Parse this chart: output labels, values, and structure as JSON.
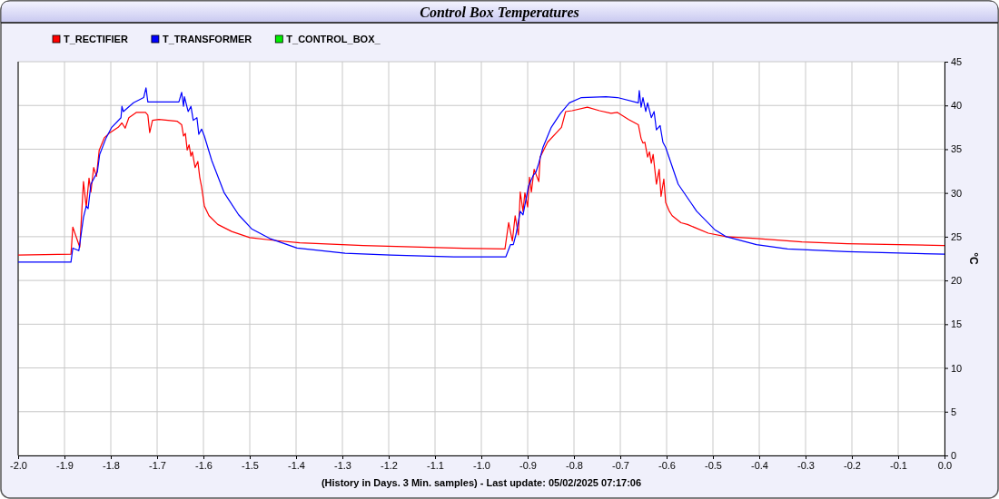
{
  "chart_data": {
    "type": "line",
    "title": "Control Box Temperatures",
    "xlabel": "(History in Days. 3 Min. samples) - Last update: 05/02/2025 07:17:06",
    "ylabel": "°C",
    "xlim": [
      -2.0,
      0.0
    ],
    "xticks": [
      {
        "value": -2.0,
        "label": "-2.0"
      },
      {
        "value": -1.9,
        "label": "-1.9"
      },
      {
        "value": -1.8,
        "label": "-1.8"
      },
      {
        "value": -1.7,
        "label": "-1.7"
      },
      {
        "value": -1.6,
        "label": "-1.6"
      },
      {
        "value": -1.5,
        "label": "-1.5"
      },
      {
        "value": -1.4,
        "label": "-1.4"
      },
      {
        "value": -1.3,
        "label": "-1.3"
      },
      {
        "value": -1.2,
        "label": "-1.2"
      },
      {
        "value": -1.1,
        "label": "-1.1"
      },
      {
        "value": -1.0,
        "label": "-1.0"
      },
      {
        "value": -0.9,
        "label": "-0.9"
      },
      {
        "value": -0.8,
        "label": "-0.8"
      },
      {
        "value": -0.7,
        "label": "-0.7"
      },
      {
        "value": -0.6,
        "label": "-0.6"
      },
      {
        "value": -0.5,
        "label": "-0.5"
      },
      {
        "value": -0.4,
        "label": "-0.4"
      },
      {
        "value": -0.3,
        "label": "-0.3"
      },
      {
        "value": -0.2,
        "label": "-0.2"
      },
      {
        "value": -0.1,
        "label": "-0.1"
      },
      {
        "value": 0.0,
        "label": "0.0"
      }
    ],
    "ylim": [
      0,
      45
    ],
    "yticks": [
      0,
      5,
      10,
      15,
      20,
      25,
      30,
      35,
      40,
      45
    ],
    "grid": true,
    "legend": "top left",
    "marker": "none",
    "line_style": "solid",
    "series": [
      {
        "name": "T_RECTIFIER",
        "color": "#ff0000",
        "x": [
          -2.0,
          -1.886,
          -1.882,
          -1.867,
          -1.859,
          -1.853,
          -1.847,
          -1.843,
          -1.837,
          -1.831,
          -1.825,
          -1.814,
          -1.804,
          -1.784,
          -1.776,
          -1.769,
          -1.761,
          -1.745,
          -1.725,
          -1.72,
          -1.716,
          -1.71,
          -1.696,
          -1.657,
          -1.647,
          -1.643,
          -1.639,
          -1.635,
          -1.631,
          -1.627,
          -1.624,
          -1.618,
          -1.612,
          -1.608,
          -1.604,
          -1.598,
          -1.588,
          -1.569,
          -1.539,
          -1.5,
          -1.451,
          -1.392,
          -1.255,
          -1.059,
          -0.949,
          -0.941,
          -0.933,
          -0.927,
          -0.92,
          -0.916,
          -0.91,
          -0.906,
          -0.9,
          -0.896,
          -0.892,
          -0.886,
          -0.876,
          -0.873,
          -0.857,
          -0.827,
          -0.818,
          -0.804,
          -0.771,
          -0.745,
          -0.72,
          -0.706,
          -0.682,
          -0.661,
          -0.655,
          -0.651,
          -0.647,
          -0.641,
          -0.637,
          -0.633,
          -0.629,
          -0.622,
          -0.616,
          -0.612,
          -0.606,
          -0.602,
          -0.594,
          -0.588,
          -0.569,
          -0.555,
          -0.51,
          -0.471,
          -0.406,
          -0.308,
          -0.21,
          0.0
        ],
        "values": [
          22.9,
          23.0,
          26.1,
          23.8,
          31.3,
          28.4,
          31.7,
          30.1,
          32.9,
          31.9,
          34.9,
          36.3,
          36.8,
          37.5,
          38.0,
          37.4,
          38.6,
          39.2,
          39.2,
          38.9,
          36.9,
          38.3,
          38.4,
          38.2,
          37.8,
          36.5,
          36.8,
          34.9,
          35.5,
          34.2,
          34.7,
          32.9,
          33.6,
          31.8,
          30.7,
          28.5,
          27.4,
          26.4,
          25.6,
          24.9,
          24.6,
          24.3,
          24.0,
          23.7,
          23.6,
          26.6,
          24.5,
          27.4,
          25.2,
          30.1,
          27.9,
          30.0,
          28.4,
          31.8,
          30.1,
          32.7,
          31.3,
          34.1,
          35.8,
          37.5,
          39.3,
          39.4,
          39.8,
          39.4,
          39.1,
          39.2,
          38.4,
          37.8,
          36.2,
          35.7,
          35.8,
          34.1,
          34.7,
          33.4,
          34.4,
          31.0,
          32.7,
          29.6,
          31.6,
          28.9,
          27.9,
          27.4,
          26.6,
          26.4,
          25.4,
          25.0,
          24.8,
          24.4,
          24.2,
          24.0
        ]
      },
      {
        "name": "T_TRANSFORMER",
        "color": "#0000ff",
        "x": [
          -2.0,
          -1.886,
          -1.882,
          -1.869,
          -1.859,
          -1.853,
          -1.849,
          -1.843,
          -1.837,
          -1.829,
          -1.824,
          -1.81,
          -1.798,
          -1.778,
          -1.776,
          -1.773,
          -1.751,
          -1.729,
          -1.724,
          -1.72,
          -1.686,
          -1.653,
          -1.647,
          -1.643,
          -1.641,
          -1.633,
          -1.627,
          -1.622,
          -1.614,
          -1.61,
          -1.604,
          -1.598,
          -1.582,
          -1.555,
          -1.524,
          -1.496,
          -1.457,
          -1.398,
          -1.294,
          -1.196,
          -1.059,
          -0.947,
          -0.937,
          -0.931,
          -0.925,
          -0.916,
          -0.91,
          -0.898,
          -0.888,
          -0.882,
          -0.876,
          -0.867,
          -0.849,
          -0.829,
          -0.81,
          -0.784,
          -0.731,
          -0.706,
          -0.661,
          -0.659,
          -0.655,
          -0.651,
          -0.645,
          -0.641,
          -0.633,
          -0.627,
          -0.622,
          -0.614,
          -0.608,
          -0.602,
          -0.575,
          -0.535,
          -0.496,
          -0.471,
          -0.406,
          -0.339,
          -0.21,
          0.0
        ],
        "values": [
          22.1,
          22.1,
          23.7,
          23.4,
          27.2,
          28.5,
          28.2,
          31.0,
          31.6,
          32.4,
          34.4,
          36.3,
          37.5,
          38.6,
          39.9,
          39.3,
          40.3,
          40.9,
          42.0,
          40.4,
          40.4,
          40.4,
          41.5,
          39.9,
          41.0,
          39.3,
          39.9,
          38.3,
          38.6,
          36.7,
          37.3,
          36.5,
          33.7,
          30.0,
          27.5,
          25.9,
          24.8,
          23.7,
          23.1,
          22.9,
          22.7,
          22.7,
          24.1,
          24.1,
          25.3,
          27.9,
          27.5,
          30.8,
          32.0,
          32.4,
          33.4,
          35.2,
          37.5,
          39.1,
          40.3,
          40.9,
          41.0,
          40.9,
          40.3,
          41.7,
          39.8,
          40.9,
          39.3,
          40.3,
          38.6,
          39.3,
          37.2,
          37.7,
          35.8,
          35.2,
          31.0,
          27.9,
          25.8,
          25.0,
          24.1,
          23.6,
          23.3,
          23.0
        ]
      },
      {
        "name": "T_CONTROL_BOX_",
        "color": "#00ee00"
      }
    ]
  }
}
